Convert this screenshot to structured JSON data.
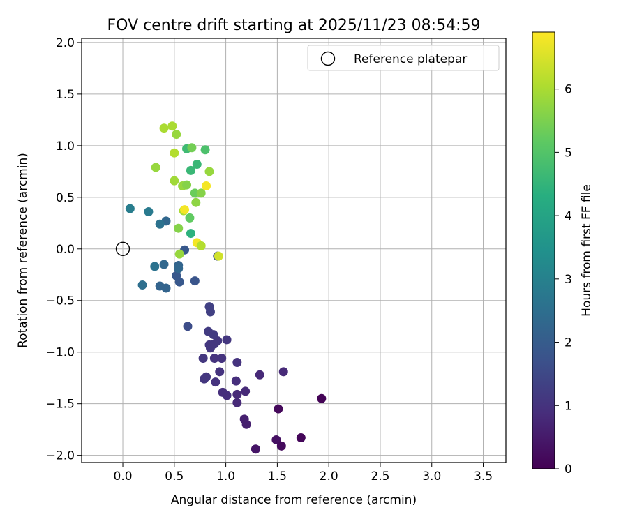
{
  "chart_data": {
    "type": "scatter",
    "title": "FOV centre drift starting at 2025/11/23 08:54:59",
    "xlabel": "Angular distance from reference (arcmin)",
    "ylabel": "Rotation from reference (arcmin)",
    "xlim": [
      -0.4,
      3.72
    ],
    "ylim": [
      -2.07,
      2.04
    ],
    "x_ticks": [
      "0.0",
      "0.5",
      "1.0",
      "1.5",
      "2.0",
      "2.5",
      "3.0",
      "3.5"
    ],
    "y_ticks": [
      "−2.0",
      "−1.5",
      "−1.0",
      "−0.5",
      "0.0",
      "0.5",
      "1.0",
      "1.5",
      "2.0"
    ],
    "grid": true,
    "legend": {
      "position": "top-right",
      "entries": [
        "Reference platepar"
      ]
    },
    "reference_point": {
      "x": 0.0,
      "y": 0.0
    },
    "colorbar": {
      "label": "Hours from first FF file",
      "range": [
        0,
        6.9
      ],
      "ticks": [
        "0",
        "1",
        "2",
        "3",
        "4",
        "5",
        "6"
      ],
      "colormap": "viridis"
    },
    "points": [
      {
        "x": 1.29,
        "y": -1.94,
        "c": 0.4
      },
      {
        "x": 1.49,
        "y": -1.85,
        "c": 0.3
      },
      {
        "x": 1.54,
        "y": -1.91,
        "c": 0.2
      },
      {
        "x": 1.73,
        "y": -1.83,
        "c": 0.1
      },
      {
        "x": 1.93,
        "y": -1.45,
        "c": 0.05
      },
      {
        "x": 1.51,
        "y": -1.55,
        "c": 0.15
      },
      {
        "x": 1.18,
        "y": -1.65,
        "c": 0.6
      },
      {
        "x": 1.2,
        "y": -1.7,
        "c": 0.6
      },
      {
        "x": 1.11,
        "y": -1.49,
        "c": 0.8
      },
      {
        "x": 1.11,
        "y": -1.41,
        "c": 0.8
      },
      {
        "x": 1.19,
        "y": -1.38,
        "c": 0.8
      },
      {
        "x": 1.01,
        "y": -1.42,
        "c": 0.9
      },
      {
        "x": 0.97,
        "y": -1.39,
        "c": 0.9
      },
      {
        "x": 1.1,
        "y": -1.28,
        "c": 0.9
      },
      {
        "x": 1.33,
        "y": -1.22,
        "c": 0.8
      },
      {
        "x": 1.56,
        "y": -1.19,
        "c": 0.8
      },
      {
        "x": 0.94,
        "y": -1.19,
        "c": 1.0
      },
      {
        "x": 0.9,
        "y": -1.29,
        "c": 1.0
      },
      {
        "x": 0.79,
        "y": -1.26,
        "c": 1.1
      },
      {
        "x": 0.81,
        "y": -1.24,
        "c": 1.1
      },
      {
        "x": 0.78,
        "y": -1.06,
        "c": 1.1
      },
      {
        "x": 0.89,
        "y": -1.06,
        "c": 1.0
      },
      {
        "x": 0.96,
        "y": -1.06,
        "c": 1.0
      },
      {
        "x": 1.11,
        "y": -1.1,
        "c": 1.0
      },
      {
        "x": 0.84,
        "y": -0.93,
        "c": 1.1
      },
      {
        "x": 0.85,
        "y": -0.96,
        "c": 1.1
      },
      {
        "x": 0.89,
        "y": -0.92,
        "c": 1.1
      },
      {
        "x": 0.92,
        "y": -0.89,
        "c": 1.1
      },
      {
        "x": 1.01,
        "y": -0.88,
        "c": 1.1
      },
      {
        "x": 0.83,
        "y": -0.8,
        "c": 1.2
      },
      {
        "x": 0.88,
        "y": -0.83,
        "c": 1.2
      },
      {
        "x": 0.84,
        "y": -0.56,
        "c": 1.3
      },
      {
        "x": 0.85,
        "y": -0.61,
        "c": 1.3
      },
      {
        "x": 0.63,
        "y": -0.75,
        "c": 1.6
      },
      {
        "x": 0.7,
        "y": -0.31,
        "c": 1.8
      },
      {
        "x": 0.55,
        "y": -0.32,
        "c": 1.9
      },
      {
        "x": 0.52,
        "y": -0.26,
        "c": 1.9
      },
      {
        "x": 0.54,
        "y": -0.16,
        "c": 2.2
      },
      {
        "x": 0.54,
        "y": -0.19,
        "c": 2.3
      },
      {
        "x": 0.6,
        "y": -0.01,
        "c": 1.9
      },
      {
        "x": 0.92,
        "y": -0.07,
        "c": 1.7
      },
      {
        "x": 0.42,
        "y": -0.38,
        "c": 2.2
      },
      {
        "x": 0.36,
        "y": -0.36,
        "c": 2.2
      },
      {
        "x": 0.4,
        "y": -0.15,
        "c": 2.3
      },
      {
        "x": 0.31,
        "y": -0.17,
        "c": 2.6
      },
      {
        "x": 0.19,
        "y": -0.35,
        "c": 2.5
      },
      {
        "x": 0.42,
        "y": 0.27,
        "c": 2.3
      },
      {
        "x": 0.36,
        "y": 0.24,
        "c": 2.6
      },
      {
        "x": 0.25,
        "y": 0.36,
        "c": 2.8
      },
      {
        "x": 0.07,
        "y": 0.39,
        "c": 2.9
      },
      {
        "x": 0.66,
        "y": 0.15,
        "c": 4.4
      },
      {
        "x": 0.54,
        "y": 0.2,
        "c": 5.6
      },
      {
        "x": 0.65,
        "y": 0.3,
        "c": 5.2
      },
      {
        "x": 0.59,
        "y": 0.37,
        "c": 6.0
      },
      {
        "x": 0.6,
        "y": 0.38,
        "c": 6.8
      },
      {
        "x": 0.72,
        "y": 0.06,
        "c": 6.8
      },
      {
        "x": 0.76,
        "y": 0.03,
        "c": 6.1
      },
      {
        "x": 0.55,
        "y": -0.05,
        "c": 5.8
      },
      {
        "x": 0.93,
        "y": -0.07,
        "c": 6.4
      },
      {
        "x": 0.71,
        "y": 0.45,
        "c": 5.7
      },
      {
        "x": 0.7,
        "y": 0.54,
        "c": 5.3
      },
      {
        "x": 0.76,
        "y": 0.54,
        "c": 5.6
      },
      {
        "x": 0.81,
        "y": 0.61,
        "c": 6.8
      },
      {
        "x": 0.58,
        "y": 0.61,
        "c": 5.8
      },
      {
        "x": 0.62,
        "y": 0.62,
        "c": 5.6
      },
      {
        "x": 0.5,
        "y": 0.66,
        "c": 5.9
      },
      {
        "x": 0.66,
        "y": 0.76,
        "c": 4.6
      },
      {
        "x": 0.72,
        "y": 0.82,
        "c": 4.6
      },
      {
        "x": 0.84,
        "y": 0.75,
        "c": 5.8
      },
      {
        "x": 0.32,
        "y": 0.79,
        "c": 5.8
      },
      {
        "x": 0.5,
        "y": 0.93,
        "c": 6.1
      },
      {
        "x": 0.62,
        "y": 0.97,
        "c": 4.7
      },
      {
        "x": 0.67,
        "y": 0.98,
        "c": 5.4
      },
      {
        "x": 0.8,
        "y": 0.96,
        "c": 4.9
      },
      {
        "x": 0.52,
        "y": 1.11,
        "c": 5.8
      },
      {
        "x": 0.4,
        "y": 1.17,
        "c": 6.0
      },
      {
        "x": 0.48,
        "y": 1.19,
        "c": 6.0
      }
    ]
  }
}
